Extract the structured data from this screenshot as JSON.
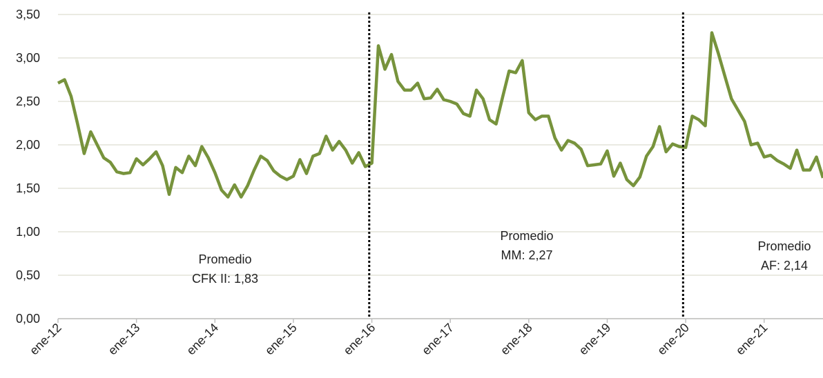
{
  "chart_data": {
    "type": "line",
    "categories": [
      "ene-12",
      null,
      null,
      null,
      null,
      null,
      null,
      null,
      null,
      null,
      null,
      null,
      "ene-13",
      null,
      null,
      null,
      null,
      null,
      null,
      null,
      null,
      null,
      null,
      null,
      "ene-14",
      null,
      null,
      null,
      null,
      null,
      null,
      null,
      null,
      null,
      null,
      null,
      "ene-15",
      null,
      null,
      null,
      null,
      null,
      null,
      null,
      null,
      null,
      null,
      null,
      "ene-16",
      null,
      null,
      null,
      null,
      null,
      null,
      null,
      null,
      null,
      null,
      null,
      "ene-17",
      null,
      null,
      null,
      null,
      null,
      null,
      null,
      null,
      null,
      null,
      null,
      "ene-18",
      null,
      null,
      null,
      null,
      null,
      null,
      null,
      null,
      null,
      null,
      null,
      "ene-19",
      null,
      null,
      null,
      null,
      null,
      null,
      null,
      null,
      null,
      null,
      null,
      "ene-20",
      null,
      null,
      null,
      null,
      null,
      null,
      null,
      null,
      null,
      null,
      null,
      "ene-21",
      null,
      null,
      null,
      null,
      null,
      null,
      null,
      null,
      null
    ],
    "values": [
      2.71,
      2.75,
      2.56,
      2.24,
      1.9,
      2.15,
      2.0,
      1.85,
      1.8,
      1.69,
      1.67,
      1.68,
      1.84,
      1.77,
      1.84,
      1.92,
      1.76,
      1.43,
      1.74,
      1.68,
      1.87,
      1.76,
      1.98,
      1.85,
      1.68,
      1.48,
      1.4,
      1.54,
      1.4,
      1.53,
      1.71,
      1.87,
      1.82,
      1.7,
      1.64,
      1.6,
      1.64,
      1.83,
      1.67,
      1.87,
      1.9,
      2.1,
      1.94,
      2.04,
      1.94,
      1.79,
      1.91,
      1.75,
      1.79,
      3.14,
      2.87,
      3.04,
      2.73,
      2.63,
      2.63,
      2.71,
      2.53,
      2.54,
      2.64,
      2.52,
      2.5,
      2.47,
      2.36,
      2.33,
      2.63,
      2.53,
      2.29,
      2.24,
      2.55,
      2.85,
      2.83,
      2.97,
      2.37,
      2.29,
      2.33,
      2.33,
      2.08,
      1.94,
      2.05,
      2.02,
      1.95,
      1.76,
      1.77,
      1.78,
      1.93,
      1.64,
      1.79,
      1.6,
      1.53,
      1.63,
      1.87,
      1.98,
      2.21,
      1.92,
      2.01,
      1.98,
      1.97,
      2.33,
      2.29,
      2.22,
      3.29,
      3.05,
      2.79,
      2.53,
      2.4,
      2.27,
      2.0,
      2.02,
      1.86,
      1.88,
      1.82,
      1.78,
      1.73,
      1.94,
      1.71,
      1.71,
      1.86,
      1.62
    ],
    "color": "#77933c",
    "ylim": [
      0,
      3.5
    ],
    "yticks": [
      {
        "value": 0,
        "label": "0,00"
      },
      {
        "value": 0.5,
        "label": "0,50"
      },
      {
        "value": 1,
        "label": "1,00"
      },
      {
        "value": 1.5,
        "label": "1,50"
      },
      {
        "value": 2,
        "label": "2,00"
      },
      {
        "value": 2.5,
        "label": "2,50"
      },
      {
        "value": 3,
        "label": "3,00"
      },
      {
        "value": 3.5,
        "label": "3,50"
      }
    ],
    "grid": true,
    "annotations": [
      {
        "lines": [
          "Promedio",
          "CFK II: 1,83"
        ]
      },
      {
        "lines": [
          "Promedio",
          "MM: 2,27"
        ]
      },
      {
        "lines": [
          "Promedio",
          "AF: 2,14"
        ]
      }
    ]
  }
}
